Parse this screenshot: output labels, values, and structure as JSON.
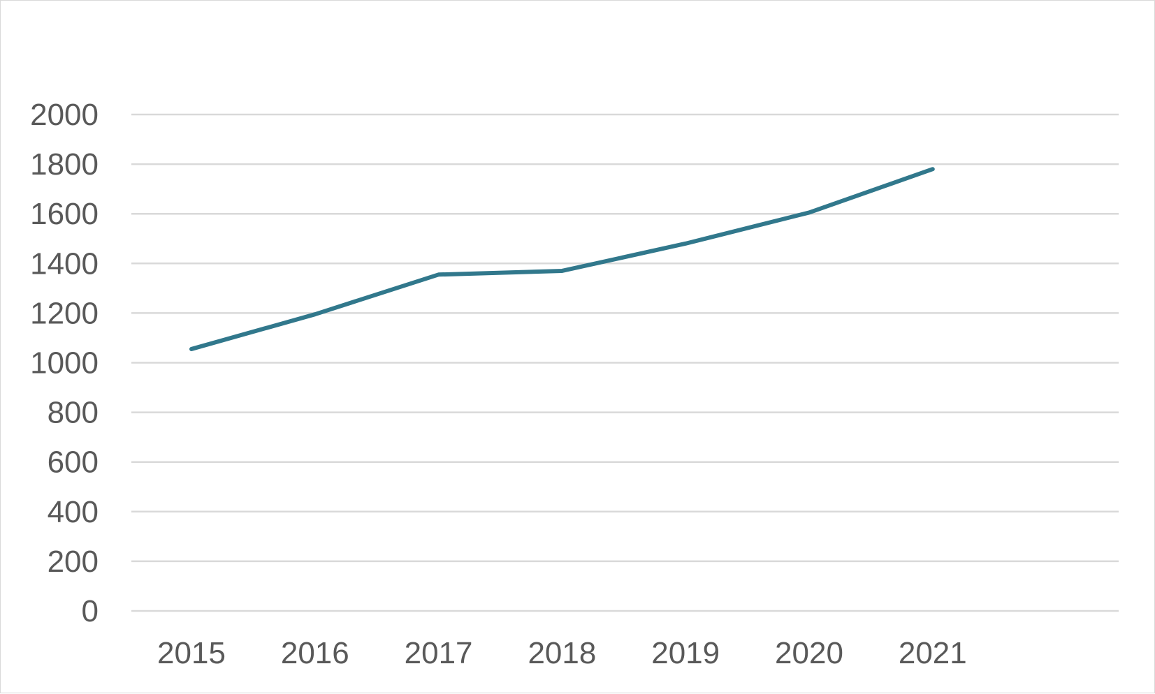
{
  "chart_data": {
    "type": "line",
    "title": "",
    "xlabel": "",
    "ylabel": "",
    "categories": [
      "2015",
      "2016",
      "2017",
      "2018",
      "2019",
      "2020",
      "2021"
    ],
    "series": [
      {
        "values": [
          1055,
          1195,
          1355,
          1370,
          1480,
          1605,
          1780
        ],
        "color": "#31788c"
      }
    ],
    "ylim": [
      0,
      2000
    ],
    "yticks": [
      0,
      200,
      400,
      600,
      800,
      1000,
      1200,
      1400,
      1600,
      1800,
      2000
    ],
    "grid": true,
    "legend": "none"
  }
}
